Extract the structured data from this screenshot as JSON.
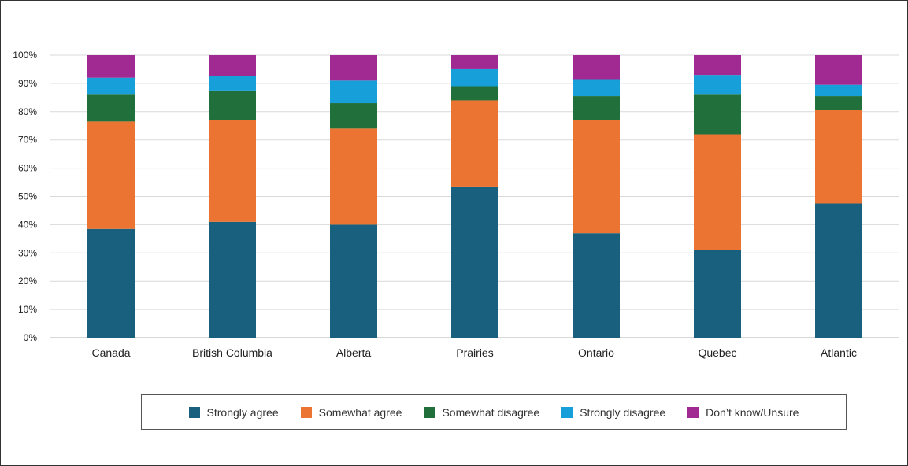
{
  "chart_data": {
    "type": "bar",
    "stacked": true,
    "categories": [
      "Canada",
      "British Columbia",
      "Alberta",
      "Prairies",
      "Ontario",
      "Quebec",
      "Atlantic"
    ],
    "series": [
      {
        "name": "Strongly agree",
        "color": "#19607f",
        "values": [
          38.5,
          41,
          40,
          53.5,
          37,
          31,
          47.5
        ]
      },
      {
        "name": "Somewhat agree",
        "color": "#eb7432",
        "values": [
          38,
          36,
          34,
          30.5,
          40,
          41,
          33
        ]
      },
      {
        "name": "Somewhat disagree",
        "color": "#21703b",
        "values": [
          9.5,
          10.5,
          9,
          5,
          8.5,
          14,
          5
        ]
      },
      {
        "name": "Strongly disagree",
        "color": "#169fd8",
        "values": [
          6,
          5,
          8,
          6,
          6,
          7,
          4
        ]
      },
      {
        "name": "Don’t know/Unsure",
        "color": "#a02a92",
        "values": [
          8,
          7.5,
          9,
          5,
          8.5,
          7,
          10.5
        ]
      }
    ],
    "ylim": [
      0,
      100
    ],
    "yticks": [
      "0%",
      "10%",
      "20%",
      "30%",
      "40%",
      "50%",
      "60%",
      "70%",
      "80%",
      "90%",
      "100%"
    ],
    "grid": true,
    "legend_position": "bottom"
  }
}
